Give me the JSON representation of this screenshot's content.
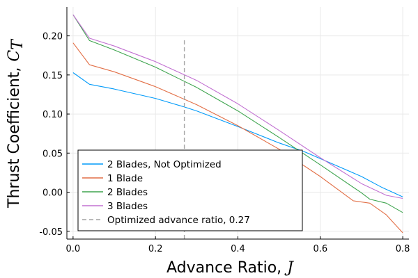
{
  "chart_data": {
    "type": "line",
    "xlabel": "Advance Ratio,",
    "xlabel_symbol": "J",
    "ylabel": "Thrust Coefficient,",
    "ylabel_symbol": "C",
    "ylabel_subscript": "T",
    "xlim": [
      -0.015,
      0.815
    ],
    "ylim": [
      -0.06,
      0.237
    ],
    "xticks": [
      0.0,
      0.2,
      0.4,
      0.6,
      0.8
    ],
    "xtick_labels": [
      "0.0",
      "0.2",
      "0.4",
      "0.6",
      "0.8"
    ],
    "yticks": [
      -0.05,
      0.0,
      0.05,
      0.1,
      0.15,
      0.2
    ],
    "ytick_labels": [
      "-0.05",
      "0.00",
      "0.05",
      "0.10",
      "0.15",
      "0.20"
    ],
    "grid": true,
    "legend_position": "bottom-left",
    "series": [
      {
        "name": "2 Blades, Not Optimized",
        "color": "#009af9",
        "style": "solid",
        "x": [
          0.0,
          0.04,
          0.1,
          0.2,
          0.27,
          0.3,
          0.4,
          0.5,
          0.56,
          0.6,
          0.7,
          0.75,
          0.8
        ],
        "y": [
          0.153,
          0.138,
          0.132,
          0.12,
          0.109,
          0.104,
          0.084,
          0.063,
          0.052,
          0.043,
          0.02,
          0.006,
          -0.006
        ]
      },
      {
        "name": "1 Blade",
        "color": "#e26f46",
        "style": "solid",
        "x": [
          0.0,
          0.04,
          0.1,
          0.2,
          0.3,
          0.4,
          0.5,
          0.6,
          0.68,
          0.72,
          0.76,
          0.8
        ],
        "y": [
          0.191,
          0.163,
          0.154,
          0.135,
          0.112,
          0.085,
          0.055,
          0.02,
          -0.011,
          -0.014,
          -0.029,
          -0.052
        ]
      },
      {
        "name": "2 Blades",
        "color": "#3ea44e",
        "style": "solid",
        "x": [
          0.0,
          0.04,
          0.1,
          0.2,
          0.3,
          0.4,
          0.5,
          0.6,
          0.7,
          0.72,
          0.76,
          0.8
        ],
        "y": [
          0.227,
          0.194,
          0.182,
          0.16,
          0.134,
          0.104,
          0.07,
          0.035,
          -0.001,
          -0.009,
          -0.014,
          -0.026
        ]
      },
      {
        "name": "3 Blades",
        "color": "#c271d2",
        "style": "solid",
        "x": [
          0.0,
          0.04,
          0.1,
          0.2,
          0.3,
          0.4,
          0.5,
          0.6,
          0.7,
          0.76,
          0.8
        ],
        "y": [
          0.227,
          0.197,
          0.187,
          0.167,
          0.143,
          0.113,
          0.079,
          0.044,
          0.011,
          -0.004,
          -0.008
        ]
      },
      {
        "name": "Optimized advance ratio, 0.27",
        "color": "#a3a3a3",
        "style": "dashed",
        "x": [
          0.27,
          0.27
        ],
        "y": [
          -0.06,
          0.197
        ]
      }
    ]
  }
}
